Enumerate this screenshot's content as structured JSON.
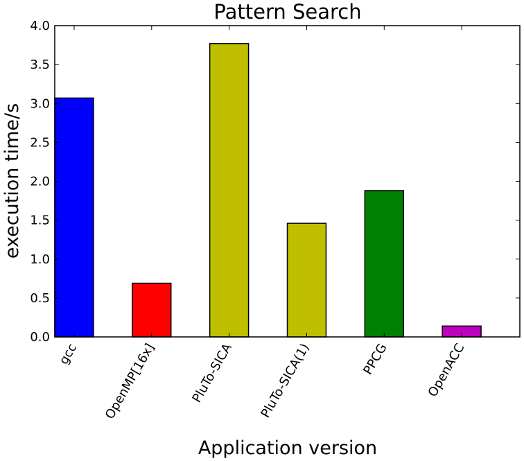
{
  "chart_data": {
    "type": "bar",
    "title": "Pattern Search",
    "xlabel": "Application version",
    "ylabel": "execution time/s",
    "categories": [
      "gcc",
      "OpenMP[16x]",
      "PluTo-SICA",
      "PluTo-SICA(1)",
      "PPCG",
      "OpenACC"
    ],
    "values": [
      3.07,
      0.69,
      3.77,
      1.46,
      1.88,
      0.14
    ],
    "colors": [
      "#0000ff",
      "#ff0000",
      "#bfbf00",
      "#bfbf00",
      "#008000",
      "#bf00bf"
    ],
    "ylim": [
      0,
      4.0
    ],
    "yticks": [
      "0.0",
      "0.5",
      "1.0",
      "1.5",
      "2.0",
      "2.5",
      "3.0",
      "3.5",
      "4.0"
    ],
    "grid": false,
    "legend": "none"
  }
}
